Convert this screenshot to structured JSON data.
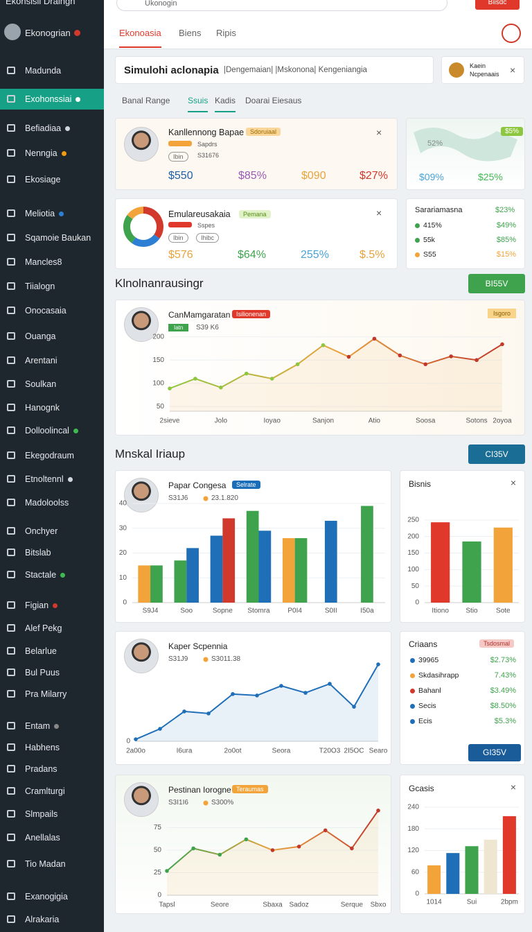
{
  "sidebar": {
    "brand": "Ekonsisii Draingn",
    "user": "Ekonogrian",
    "active": 1,
    "items": [
      {
        "label": "Madunda"
      },
      {
        "label": "Exohonssiai",
        "dot": "#ffffff"
      },
      {
        "label": "Befiadiaa",
        "dot": "#cfd6dd"
      },
      {
        "label": "Nenngia",
        "dot": "#f39c12"
      },
      {
        "label": "Ekosiage"
      },
      {
        "label": "Meliotia",
        "dot": "#2d7fd3"
      },
      {
        "label": "Sqamoie Baukan"
      },
      {
        "label": "Mancles8"
      },
      {
        "label": "Tiialogn"
      },
      {
        "label": "Onocasaia"
      },
      {
        "label": "Ouanga"
      },
      {
        "label": "Arentani"
      },
      {
        "label": "Soulkan"
      },
      {
        "label": "Hanognk"
      },
      {
        "label": "Dolloolincal",
        "dot": "#3fb950"
      },
      {
        "label": "Ekegodraum"
      },
      {
        "label": "Etnoltennl",
        "dot": "#cfd6dd"
      },
      {
        "label": "Madoloolss"
      },
      {
        "label": "Onchyer"
      },
      {
        "label": "Bitslab"
      },
      {
        "label": "Stactale",
        "dot": "#3fb950"
      },
      {
        "label": "Figian",
        "dot": "#d0392b"
      },
      {
        "label": "Alef Pekg"
      },
      {
        "label": "Belarlue"
      },
      {
        "label": "Bul Puus"
      },
      {
        "label": "Pra Milarry"
      },
      {
        "label": "Entam",
        "dot": "#888888"
      },
      {
        "label": "Habhens"
      },
      {
        "label": "Pradans"
      },
      {
        "label": "Cramlturgi"
      },
      {
        "label": "Slmpails"
      },
      {
        "label": "Anellalas"
      },
      {
        "label": "Tio Madan"
      },
      {
        "label": "Exanogigia"
      },
      {
        "label": "Alrakaria"
      }
    ]
  },
  "topbar": {
    "search": "Ukonogin",
    "button": "Biisdc"
  },
  "tabs": [
    "Ekonoasia",
    "Biens",
    "Ripis"
  ],
  "banner": {
    "title": "Simulohi aclonapia",
    "subtitle": "|Dengemaian| |Mskonona| Kengeniangia"
  },
  "notice": {
    "line1": "Kaein",
    "line2": "Ncpenaais"
  },
  "subtabs": [
    "Banal Range",
    "Ssuis",
    "Kadis",
    "Doarai Eiesaus"
  ],
  "card1": {
    "title": "Kanllennong Bapae",
    "badge": "Sdoruiaal",
    "tag": "Ibin",
    "meta": "Sapdrs",
    "code": "S31676",
    "stats": [
      {
        "text": "$550",
        "color": "#1f5fa8"
      },
      {
        "text": "$85%",
        "color": "#9b59b6"
      },
      {
        "text": "$090",
        "color": "#e8a33d"
      },
      {
        "text": "$27%",
        "color": "#d0392b"
      }
    ],
    "map": {
      "badge": "$5%",
      "label": "52%",
      "stats": [
        {
          "text": "$09%",
          "color": "#4aa3d8"
        },
        {
          "text": "$25%",
          "color": "#3fb950"
        }
      ]
    }
  },
  "card2": {
    "title": "Emulareusakaia",
    "badge": "Pemana",
    "tag1": "Ibin",
    "tag2": "Ihibc",
    "meta": "Sspes",
    "donut": {
      "type": "donut",
      "values": [
        35,
        25,
        25,
        15
      ],
      "colors": [
        "#d0392b",
        "#2d7fd3",
        "#3fa34d",
        "#f2a43a"
      ]
    },
    "stats": [
      {
        "text": "$576",
        "color": "#e8a33d"
      },
      {
        "text": "$64%",
        "color": "#3fa34d"
      },
      {
        "text": "255%",
        "color": "#4aa3d8"
      },
      {
        "text": "$.5%",
        "color": "#e8a33d"
      }
    ],
    "side": {
      "title": "Sarariamasna",
      "title_value": "$23%",
      "rows": [
        {
          "label": "415%",
          "value": "$49%",
          "color": "#3fa34d"
        },
        {
          "label": "55k",
          "value": "$85%",
          "color": "#3fa34d"
        },
        {
          "label": "S55",
          "value": "$15%",
          "color": "#f2a43a"
        }
      ]
    }
  },
  "section1": {
    "title": "Klnolnanrausingr",
    "button": "BI55V"
  },
  "chart1": {
    "type": "line",
    "title": "CanMamgaratan",
    "badge": "Isilionenan",
    "meta_tag": "Iatn",
    "meta": "S39 K6",
    "corner": "Isgoro",
    "area": true,
    "categories": [
      "2sieve",
      null,
      "Jolo",
      null,
      "Ioyao",
      null,
      "Sanjon",
      null,
      "Atio",
      null,
      "Soosa",
      null,
      "Sotons",
      "2oyoa"
    ],
    "series": [
      {
        "values": [
          89,
          110,
          91,
          121,
          110,
          141,
          182,
          157,
          196,
          160,
          141,
          158,
          150,
          184
        ],
        "gradient": [
          "#8dc63f",
          "#e8a33d",
          "#c0392b"
        ]
      }
    ],
    "ylim": [
      40,
      210
    ],
    "yticks": [
      50,
      100,
      150,
      200
    ]
  },
  "section2": {
    "title": "Mnskal Iriaup",
    "button": "CI35V"
  },
  "chart2": {
    "type": "bar",
    "title": "Papar Congesa",
    "badge": "Selrate",
    "meta": "S31J6",
    "meta2": "23.1.820",
    "categories": [
      "S9J4",
      "Soo",
      "Sopne",
      "Stomra",
      "P0I4",
      "S0II",
      "I50a"
    ],
    "series": [
      {
        "color": "#f2a43a",
        "values": [
          15,
          null,
          null,
          null,
          26,
          null,
          null
        ]
      },
      {
        "color": "#3fa34d",
        "values": [
          15,
          17,
          null,
          37,
          26,
          null,
          39
        ]
      },
      {
        "color": "#1f6fb8",
        "values": [
          null,
          22,
          27,
          29,
          null,
          33,
          null
        ]
      },
      {
        "color": "#d0392b",
        "values": [
          null,
          null,
          34,
          null,
          null,
          null,
          null
        ]
      }
    ],
    "ylim": [
      0,
      40
    ],
    "yticks": [
      0,
      10,
      20,
      30,
      40
    ]
  },
  "chart3": {
    "type": "bar",
    "title": "Bisnis",
    "categories": [
      "Itiono",
      "Stio",
      "Sote"
    ],
    "values": [
      243,
      185,
      227
    ],
    "colors": [
      "#e0392b",
      "#3fa34d",
      "#f2a43a"
    ],
    "ylim": [
      0,
      300
    ],
    "yticks": [
      0,
      50,
      100,
      150,
      200,
      250
    ]
  },
  "chart4": {
    "type": "line",
    "title": "Kaper Scpennia",
    "meta": "S31J9",
    "meta2": "S3011.38",
    "area": true,
    "categories": [
      "2a00o",
      null,
      "I6ura",
      null,
      "2o0ot",
      null,
      "Seora",
      null,
      "T20O3",
      "2I5OC",
      "Searo"
    ],
    "series": [
      {
        "values": [
          10,
          61,
          146,
          136,
          231,
          224,
          271,
          237,
          281,
          169,
          376
        ],
        "color": "#1f6fb8"
      }
    ],
    "ylim": [
      0,
      400
    ],
    "yticks": [
      0
    ]
  },
  "list": {
    "title": "Criaans",
    "badge": "Tsdosmal",
    "rows": [
      {
        "label": "39965",
        "value": "$2.73%",
        "color": "#1f6fb8"
      },
      {
        "label": "Skdasihrapp",
        "value": "7.43%",
        "color": "#f2a43a"
      },
      {
        "label": "Bahanl",
        "value": "$3.49%",
        "color": "#d0392b"
      },
      {
        "label": "Secis",
        "value": "$8.50%",
        "color": "#1f6fb8"
      },
      {
        "label": "Ecis",
        "value": "$5.3%",
        "color": "#1f6fb8"
      }
    ],
    "button": "GI35V"
  },
  "chart5": {
    "type": "line",
    "title": "Pestinan Iorogne",
    "badge": "Teraumas",
    "meta": "S3I1I6",
    "meta2": "S300%",
    "area": true,
    "categories": [
      "Tapsl",
      null,
      "Seore",
      null,
      "Sbaxa",
      "Sadoz",
      null,
      "Serque",
      "Sbxo"
    ],
    "series": [
      {
        "values": [
          27,
          52,
          45,
          62,
          50,
          54,
          72,
          52,
          94
        ],
        "gradient": [
          "#3fa34d",
          "#e8a33d",
          "#c0392b"
        ]
      }
    ],
    "ylim": [
      0,
      100
    ],
    "yticks": [
      0,
      25,
      50,
      75
    ]
  },
  "chart6": {
    "type": "bar",
    "title": "Gcasis",
    "categories": [
      "1014",
      null,
      "Sui",
      null,
      "2bpm"
    ],
    "values": [
      79,
      113,
      132,
      150,
      215
    ],
    "colors": [
      "#f2a43a",
      "#1f6fb8",
      "#3fa34d",
      "#efe6d2",
      "#e0392b"
    ],
    "ylim": [
      0,
      240
    ],
    "yticks": [
      0,
      60,
      120,
      180,
      240
    ]
  }
}
